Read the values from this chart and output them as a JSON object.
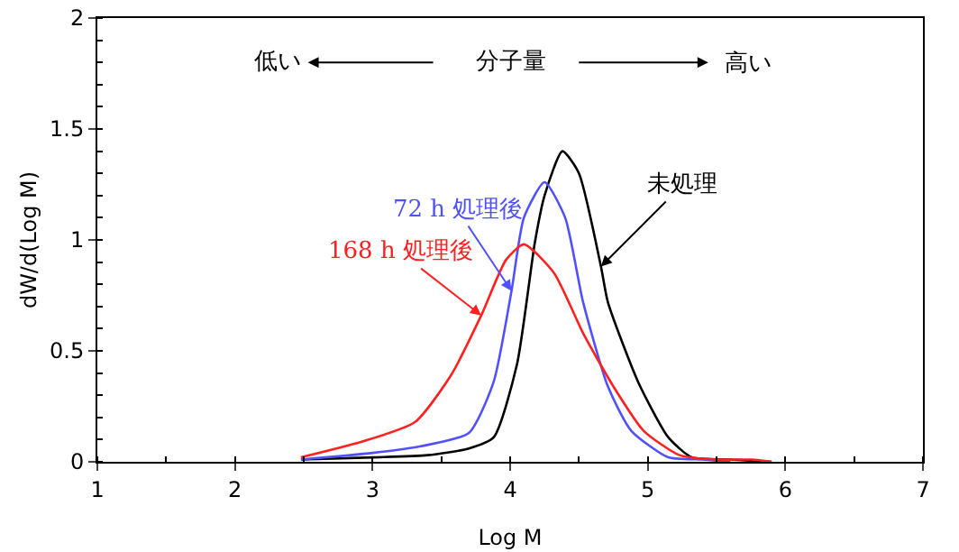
{
  "chart_data": {
    "type": "line",
    "xlabel": "Log M",
    "ylabel": "dW/d(Log M)",
    "xlim": [
      1,
      7
    ],
    "ylim": [
      0,
      2
    ],
    "xticks": [
      1,
      2,
      3,
      4,
      5,
      6,
      7
    ],
    "yticks": [
      0,
      0.5,
      1,
      1.5,
      2
    ],
    "grid": false,
    "legend": false,
    "marker": "none",
    "line_style": "solid",
    "annotations": [
      "低い",
      "分子量",
      "高い"
    ],
    "series": [
      {
        "name": "未処理",
        "color": "#000000",
        "x": [
          2.48,
          3.0,
          3.4,
          3.7,
          3.88,
          4.05,
          4.18,
          4.25,
          4.38,
          4.5,
          4.66,
          4.71,
          4.93,
          5.15,
          5.32,
          5.6,
          5.9
        ],
        "values": [
          0.01,
          0.02,
          0.03,
          0.06,
          0.11,
          0.44,
          0.99,
          1.2,
          1.4,
          1.3,
          0.88,
          0.72,
          0.36,
          0.11,
          0.02,
          0.01,
          0
        ]
      },
      {
        "name": "72 h 処理後",
        "color": "#5050ff",
        "x": [
          2.48,
          3.0,
          3.35,
          3.7,
          3.88,
          4.01,
          4.1,
          4.25,
          4.4,
          4.53,
          4.71,
          4.88,
          5.15,
          5.4,
          5.6
        ],
        "values": [
          0.01,
          0.04,
          0.07,
          0.13,
          0.36,
          0.77,
          1.1,
          1.26,
          1.1,
          0.72,
          0.34,
          0.14,
          0.02,
          0.01,
          0
        ]
      },
      {
        "name": "168 h 処理後",
        "color": "#ff2020",
        "x": [
          2.48,
          2.92,
          3.31,
          3.57,
          3.79,
          3.97,
          4.1,
          4.32,
          4.53,
          4.75,
          4.97,
          5.23,
          5.5,
          5.76,
          5.9
        ],
        "values": [
          0.02,
          0.09,
          0.18,
          0.39,
          0.66,
          0.91,
          0.98,
          0.85,
          0.58,
          0.34,
          0.14,
          0.03,
          0.01,
          0.01,
          0
        ]
      }
    ]
  }
}
